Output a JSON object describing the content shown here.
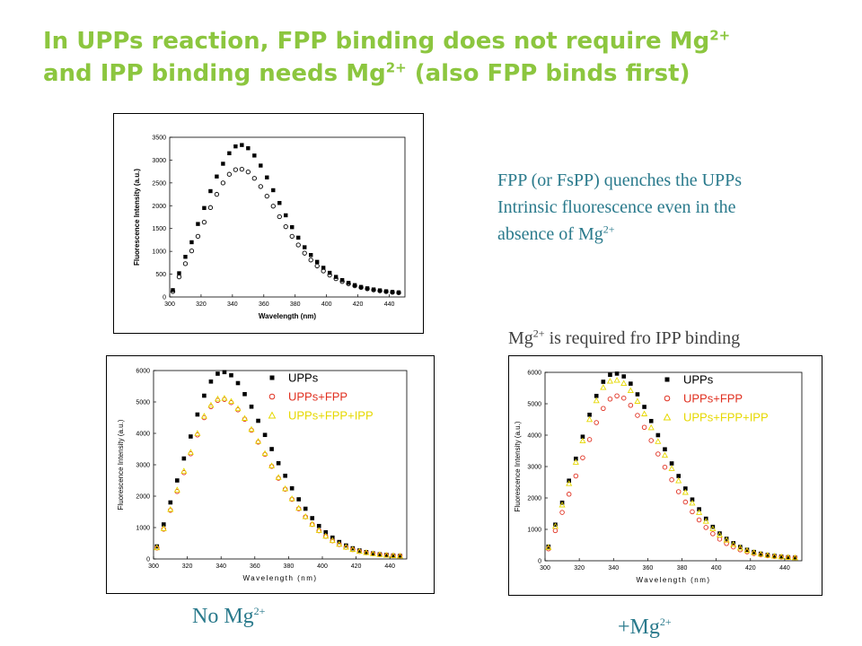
{
  "header": {
    "line1_a": "In UPPs reaction, FPP binding does not require Mg",
    "line1_sup": "2+",
    "line2_a": "and IPP binding needs Mg",
    "line2_sup": "2+",
    "line2_b": " (also FPP binds first)"
  },
  "notes": {
    "quench_line1": "FPP (or FsPP) quenches the UPPs",
    "quench_line2": "Intrinsic fluorescence even in the",
    "quench_line3": "absence of Mg",
    "quench_sup": "2+",
    "ipp_pre": "Mg",
    "ipp_sup": "2+",
    "ipp_post": " is required fro IPP binding"
  },
  "captions": {
    "no_mg": "No Mg",
    "no_mg_sup": "2+",
    "plus_mg": "+Mg",
    "plus_mg_sup": "2+"
  },
  "colors": {
    "title": "#8cc63f",
    "note": "#2a7a8c",
    "red": "#e03020",
    "yellow": "#e6d800"
  },
  "chart_data": [
    {
      "type": "scatter",
      "title": "",
      "xlabel": "Wavelength (nm)",
      "ylabel": "Fluorescence Intensity (a.u.)",
      "xlim": [
        300,
        450
      ],
      "ylim": [
        0,
        3500
      ],
      "xticks": [
        300,
        320,
        340,
        360,
        380,
        400,
        420,
        440
      ],
      "yticks": [
        0,
        500,
        1000,
        1500,
        2000,
        2500,
        3000,
        3500
      ],
      "legend": "none",
      "series": [
        {
          "name": "",
          "marker": "square",
          "color": "#000000",
          "x": [
            302,
            306,
            310,
            314,
            318,
            322,
            326,
            330,
            334,
            338,
            342,
            346,
            350,
            354,
            358,
            362,
            366,
            370,
            374,
            378,
            382,
            386,
            390,
            394,
            398,
            402,
            406,
            410,
            414,
            418,
            422,
            426,
            430,
            434,
            438,
            442,
            446
          ],
          "values": [
            150,
            520,
            880,
            1200,
            1600,
            1950,
            2320,
            2640,
            2920,
            3150,
            3300,
            3330,
            3260,
            3100,
            2880,
            2620,
            2340,
            2060,
            1790,
            1530,
            1300,
            1090,
            920,
            770,
            640,
            530,
            440,
            370,
            310,
            260,
            220,
            190,
            165,
            145,
            125,
            110,
            100
          ]
        },
        {
          "name": "",
          "marker": "circle",
          "color": "#000000",
          "x": [
            302,
            306,
            310,
            314,
            318,
            322,
            326,
            330,
            334,
            338,
            342,
            346,
            350,
            354,
            358,
            362,
            366,
            370,
            374,
            378,
            382,
            386,
            390,
            394,
            398,
            402,
            406,
            410,
            414,
            418,
            422,
            426,
            430,
            434,
            438,
            442,
            446
          ],
          "values": [
            120,
            440,
            730,
            1010,
            1330,
            1640,
            1960,
            2250,
            2500,
            2690,
            2790,
            2800,
            2740,
            2600,
            2420,
            2210,
            1990,
            1760,
            1540,
            1330,
            1140,
            960,
            810,
            680,
            570,
            480,
            400,
            340,
            290,
            245,
            210,
            180,
            155,
            135,
            118,
            104,
            94
          ]
        }
      ]
    },
    {
      "type": "scatter",
      "title": "",
      "xlabel": "Wavelength (nm)",
      "ylabel": "Fluorescence Intensity (a.u.)",
      "xlim": [
        300,
        450
      ],
      "ylim": [
        0,
        6000
      ],
      "xticks": [
        300,
        320,
        340,
        360,
        380,
        400,
        420,
        440
      ],
      "yticks": [
        0,
        1000,
        2000,
        3000,
        4000,
        5000,
        6000
      ],
      "legend": "top-right",
      "series": [
        {
          "name": "UPPs",
          "marker": "square",
          "color": "#000000",
          "x": [
            302,
            306,
            310,
            314,
            318,
            322,
            326,
            330,
            334,
            338,
            342,
            346,
            350,
            354,
            358,
            362,
            366,
            370,
            374,
            378,
            382,
            386,
            390,
            394,
            398,
            402,
            406,
            410,
            414,
            418,
            422,
            426,
            430,
            434,
            438,
            442,
            446
          ],
          "values": [
            400,
            1100,
            1800,
            2500,
            3200,
            3900,
            4600,
            5200,
            5650,
            5900,
            5950,
            5850,
            5600,
            5250,
            4850,
            4400,
            3950,
            3500,
            3050,
            2650,
            2250,
            1900,
            1600,
            1300,
            1050,
            850,
            680,
            540,
            430,
            340,
            270,
            220,
            180,
            150,
            130,
            110,
            100
          ]
        },
        {
          "name": "UPPs+FPP",
          "marker": "circle",
          "color": "#e03020",
          "x": [
            302,
            306,
            310,
            314,
            318,
            322,
            326,
            330,
            334,
            338,
            342,
            346,
            350,
            354,
            358,
            362,
            366,
            370,
            374,
            378,
            382,
            386,
            390,
            394,
            398,
            402,
            406,
            410,
            414,
            418,
            422,
            426,
            430,
            434,
            438,
            442,
            446
          ],
          "values": [
            350,
            950,
            1550,
            2150,
            2750,
            3350,
            3950,
            4500,
            4850,
            5050,
            5080,
            4980,
            4750,
            4450,
            4100,
            3720,
            3330,
            2950,
            2570,
            2220,
            1900,
            1600,
            1340,
            1100,
            900,
            720,
            580,
            460,
            370,
            300,
            240,
            200,
            165,
            140,
            120,
            105,
            95
          ]
        },
        {
          "name": "UPPs+FPP+IPP",
          "marker": "triangle",
          "color": "#e6d800",
          "x": [
            302,
            306,
            310,
            314,
            318,
            322,
            326,
            330,
            334,
            338,
            342,
            346,
            350,
            354,
            358,
            362,
            366,
            370,
            374,
            378,
            382,
            386,
            390,
            394,
            398,
            402,
            406,
            410,
            414,
            418,
            422,
            426,
            430,
            434,
            438,
            442,
            446
          ],
          "values": [
            360,
            970,
            1580,
            2200,
            2800,
            3400,
            4000,
            4550,
            4900,
            5100,
            5120,
            5020,
            4790,
            4480,
            4130,
            3750,
            3360,
            2970,
            2600,
            2240,
            1920,
            1620,
            1350,
            1110,
            910,
            730,
            590,
            470,
            380,
            305,
            245,
            205,
            170,
            142,
            122,
            107,
            97
          ]
        }
      ]
    },
    {
      "type": "scatter",
      "title": "",
      "xlabel": "Wavelength (nm)",
      "ylabel": "Fluorescence Intensity (a.u.)",
      "xlim": [
        300,
        450
      ],
      "ylim": [
        0,
        6000
      ],
      "xticks": [
        300,
        320,
        340,
        360,
        380,
        400,
        420,
        440
      ],
      "yticks": [
        0,
        1000,
        2000,
        3000,
        4000,
        5000,
        6000
      ],
      "legend": "top-right",
      "series": [
        {
          "name": "UPPs",
          "marker": "square",
          "color": "#000000",
          "x": [
            302,
            306,
            310,
            314,
            318,
            322,
            326,
            330,
            334,
            338,
            342,
            346,
            350,
            354,
            358,
            362,
            366,
            370,
            374,
            378,
            382,
            386,
            390,
            394,
            398,
            402,
            406,
            410,
            414,
            418,
            422,
            426,
            430,
            434,
            438,
            442,
            446
          ],
          "values": [
            450,
            1150,
            1850,
            2550,
            3250,
            3950,
            4650,
            5250,
            5700,
            5920,
            5960,
            5870,
            5640,
            5300,
            4900,
            4450,
            4000,
            3550,
            3100,
            2700,
            2300,
            1950,
            1640,
            1340,
            1080,
            870,
            700,
            560,
            440,
            350,
            280,
            225,
            185,
            155,
            132,
            112,
            100
          ]
        },
        {
          "name": "UPPs+FPP",
          "marker": "circle",
          "color": "#e03020",
          "x": [
            302,
            306,
            310,
            314,
            318,
            322,
            326,
            330,
            334,
            338,
            342,
            346,
            350,
            354,
            358,
            362,
            366,
            370,
            374,
            378,
            382,
            386,
            390,
            394,
            398,
            402,
            406,
            410,
            414,
            418,
            422,
            426,
            430,
            434,
            438,
            442,
            446
          ],
          "values": [
            380,
            960,
            1540,
            2120,
            2700,
            3280,
            3860,
            4400,
            4850,
            5150,
            5250,
            5180,
            4950,
            4630,
            4250,
            3830,
            3400,
            2980,
            2580,
            2200,
            1870,
            1560,
            1300,
            1060,
            860,
            690,
            550,
            440,
            350,
            285,
            230,
            190,
            160,
            135,
            118,
            104,
            94
          ]
        },
        {
          "name": "UPPs+FPP+IPP",
          "marker": "triangle",
          "color": "#e6d800",
          "x": [
            302,
            306,
            310,
            314,
            318,
            322,
            326,
            330,
            334,
            338,
            342,
            346,
            350,
            354,
            358,
            362,
            366,
            370,
            374,
            378,
            382,
            386,
            390,
            394,
            398,
            402,
            406,
            410,
            414,
            418,
            422,
            426,
            430,
            434,
            438,
            442,
            446
          ],
          "values": [
            430,
            1100,
            1780,
            2460,
            3140,
            3820,
            4500,
            5100,
            5520,
            5720,
            5750,
            5650,
            5420,
            5080,
            4680,
            4240,
            3800,
            3360,
            2940,
            2550,
            2180,
            1840,
            1540,
            1260,
            1020,
            820,
            660,
            520,
            410,
            330,
            265,
            215,
            178,
            150,
            128,
            110,
            98
          ]
        }
      ]
    }
  ]
}
